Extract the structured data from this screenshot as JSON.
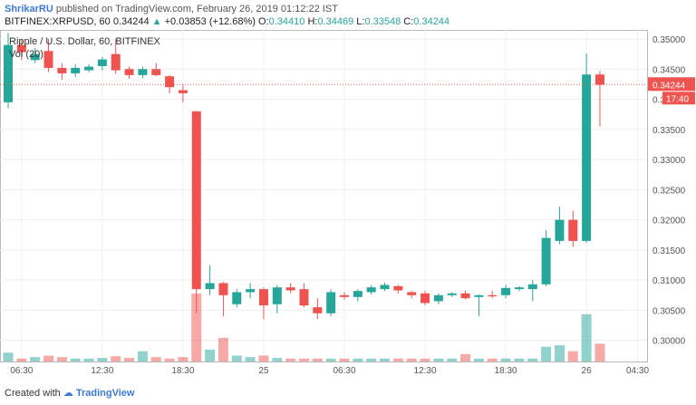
{
  "header": {
    "user": "ShrikarRU",
    "published_text": "published on TradingView.com, February 26, 2019 01:12:22 IST",
    "symbol": "BITFINEX:XRPUSD, 60",
    "last": "0.34244",
    "arrow": "▲",
    "change": "+0.03853 (+12.68%)",
    "o_label": "O:",
    "o_value": "0.34410",
    "h_label": "H:",
    "h_value": "0.34469",
    "l_label": "L:",
    "l_value": "0.33548",
    "c_label": "C:",
    "c_value": "0.34244"
  },
  "footer": {
    "created_with": "Created with",
    "brand": "TradingView"
  },
  "chart_data": {
    "type": "candlestick",
    "title": "Ripple / U.S. Dollar, 60, BITFINEX",
    "volume_label": "Vol (20)",
    "ylim": [
      0.2965,
      0.3515
    ],
    "y_ticks": [
      "0.35000",
      "0.34500",
      "0.34000",
      "0.33500",
      "0.33000",
      "0.32500",
      "0.32000",
      "0.31500",
      "0.31000",
      "0.30500",
      "0.30000"
    ],
    "x_ticks": [
      {
        "label": "06:30",
        "index": 1
      },
      {
        "label": "12:30",
        "index": 7
      },
      {
        "label": "18:30",
        "index": 13
      },
      {
        "label": "25",
        "index": 19
      },
      {
        "label": "06:30",
        "index": 25
      },
      {
        "label": "12:30",
        "index": 31
      },
      {
        "label": "18:30",
        "index": 37
      },
      {
        "label": "26",
        "index": 43
      },
      {
        "label": "04:30",
        "index": 46.8
      }
    ],
    "current_price": 0.34244,
    "current_price_label": "0.34244",
    "countdown_label": "17:40",
    "up_color": "#26a69a",
    "down_color": "#ef5350",
    "candles": [
      {
        "o": 0.3395,
        "h": 0.351,
        "l": 0.3385,
        "c": 0.349,
        "v": 3
      },
      {
        "o": 0.349,
        "h": 0.35,
        "l": 0.3465,
        "c": 0.3478,
        "v": 1
      },
      {
        "o": 0.3465,
        "h": 0.3485,
        "l": 0.346,
        "c": 0.3475,
        "v": 1.5
      },
      {
        "o": 0.348,
        "h": 0.35,
        "l": 0.3445,
        "c": 0.3452,
        "v": 2
      },
      {
        "o": 0.3452,
        "h": 0.346,
        "l": 0.3432,
        "c": 0.3443,
        "v": 1.5
      },
      {
        "o": 0.3443,
        "h": 0.3458,
        "l": 0.3437,
        "c": 0.3452,
        "v": 1
      },
      {
        "o": 0.3448,
        "h": 0.3458,
        "l": 0.3445,
        "c": 0.3454,
        "v": 1
      },
      {
        "o": 0.3455,
        "h": 0.347,
        "l": 0.3448,
        "c": 0.3466,
        "v": 1.2
      },
      {
        "o": 0.3475,
        "h": 0.35,
        "l": 0.3442,
        "c": 0.3448,
        "v": 1.8
      },
      {
        "o": 0.345,
        "h": 0.3454,
        "l": 0.3434,
        "c": 0.344,
        "v": 1.2
      },
      {
        "o": 0.344,
        "h": 0.3454,
        "l": 0.3435,
        "c": 0.345,
        "v": 3.5
      },
      {
        "o": 0.345,
        "h": 0.346,
        "l": 0.3438,
        "c": 0.344,
        "v": 1.5
      },
      {
        "o": 0.3438,
        "h": 0.344,
        "l": 0.341,
        "c": 0.342,
        "v": 1
      },
      {
        "o": 0.3415,
        "h": 0.3425,
        "l": 0.3395,
        "c": 0.341,
        "v": 1.5
      },
      {
        "o": 0.338,
        "h": 0.338,
        "l": 0.3045,
        "c": 0.3085,
        "v": 23
      },
      {
        "o": 0.3085,
        "h": 0.3125,
        "l": 0.3075,
        "c": 0.3095,
        "v": 4
      },
      {
        "o": 0.3095,
        "h": 0.3097,
        "l": 0.304,
        "c": 0.3075,
        "v": 8
      },
      {
        "o": 0.306,
        "h": 0.3085,
        "l": 0.3055,
        "c": 0.308,
        "v": 2
      },
      {
        "o": 0.308,
        "h": 0.3095,
        "l": 0.307,
        "c": 0.3085,
        "v": 1.5
      },
      {
        "o": 0.3085,
        "h": 0.3088,
        "l": 0.3035,
        "c": 0.3058,
        "v": 2
      },
      {
        "o": 0.306,
        "h": 0.3092,
        "l": 0.3045,
        "c": 0.3088,
        "v": 1.2
      },
      {
        "o": 0.3088,
        "h": 0.3095,
        "l": 0.3078,
        "c": 0.3083,
        "v": 1
      },
      {
        "o": 0.3085,
        "h": 0.3095,
        "l": 0.3055,
        "c": 0.3058,
        "v": 1
      },
      {
        "o": 0.3055,
        "h": 0.307,
        "l": 0.3035,
        "c": 0.3045,
        "v": 1
      },
      {
        "o": 0.3045,
        "h": 0.3085,
        "l": 0.304,
        "c": 0.308,
        "v": 1
      },
      {
        "o": 0.3075,
        "h": 0.308,
        "l": 0.3068,
        "c": 0.3072,
        "v": 1
      },
      {
        "o": 0.3072,
        "h": 0.3085,
        "l": 0.3065,
        "c": 0.3082,
        "v": 1
      },
      {
        "o": 0.308,
        "h": 0.3092,
        "l": 0.3076,
        "c": 0.3088,
        "v": 1
      },
      {
        "o": 0.3085,
        "h": 0.3096,
        "l": 0.3082,
        "c": 0.3092,
        "v": 1
      },
      {
        "o": 0.309,
        "h": 0.3092,
        "l": 0.3078,
        "c": 0.3083,
        "v": 1
      },
      {
        "o": 0.308,
        "h": 0.3082,
        "l": 0.307,
        "c": 0.3075,
        "v": 1
      },
      {
        "o": 0.3078,
        "h": 0.3082,
        "l": 0.3058,
        "c": 0.3062,
        "v": 1
      },
      {
        "o": 0.3065,
        "h": 0.3078,
        "l": 0.306,
        "c": 0.3075,
        "v": 1
      },
      {
        "o": 0.3075,
        "h": 0.308,
        "l": 0.3072,
        "c": 0.3078,
        "v": 1
      },
      {
        "o": 0.3078,
        "h": 0.3083,
        "l": 0.3068,
        "c": 0.307,
        "v": 2.5
      },
      {
        "o": 0.3072,
        "h": 0.3076,
        "l": 0.304,
        "c": 0.3075,
        "v": 1
      },
      {
        "o": 0.3075,
        "h": 0.3082,
        "l": 0.307,
        "c": 0.3073,
        "v": 1
      },
      {
        "o": 0.3075,
        "h": 0.3092,
        "l": 0.307,
        "c": 0.3087,
        "v": 1
      },
      {
        "o": 0.3085,
        "h": 0.309,
        "l": 0.3082,
        "c": 0.3088,
        "v": 1
      },
      {
        "o": 0.3085,
        "h": 0.31,
        "l": 0.3065,
        "c": 0.3093,
        "v": 1
      },
      {
        "o": 0.3093,
        "h": 0.3183,
        "l": 0.309,
        "c": 0.317,
        "v": 5
      },
      {
        "o": 0.3165,
        "h": 0.3222,
        "l": 0.316,
        "c": 0.32,
        "v": 5.5
      },
      {
        "o": 0.32,
        "h": 0.3215,
        "l": 0.3155,
        "c": 0.3165,
        "v": 3.5
      },
      {
        "o": 0.3165,
        "h": 0.3476,
        "l": 0.3162,
        "c": 0.3441,
        "v": 16
      },
      {
        "o": 0.3441,
        "h": 0.3447,
        "l": 0.3355,
        "c": 0.3424,
        "v": 6
      }
    ]
  }
}
